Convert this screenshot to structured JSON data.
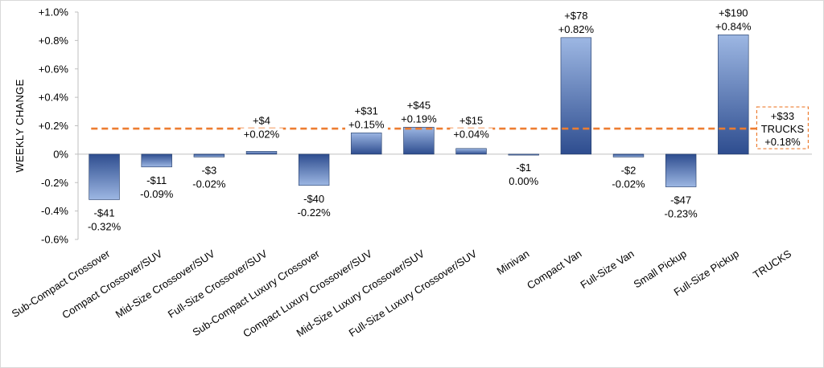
{
  "chart_data": {
    "type": "bar",
    "ylabel": "WEEKLY CHANGE",
    "ylim": [
      -0.6,
      1.0
    ],
    "yticks": [
      "+1.0%",
      "+0.8%",
      "+0.6%",
      "+0.4%",
      "+0.2%",
      "0%",
      "-0.2%",
      "-0.4%",
      "-0.6%"
    ],
    "ytick_values": [
      1.0,
      0.8,
      0.6,
      0.4,
      0.2,
      0.0,
      -0.2,
      -0.4,
      -0.6
    ],
    "categories": [
      "Sub-Compact Crossover",
      "Compact Crossover/SUV",
      "Mid-Size Crossover/SUV",
      "Full-Size Crossover/SUV",
      "Sub-Compact Luxury Crossover",
      "Compact Luxury Crossover/SUV",
      "Mid-Size Luxury Crossover/SUV",
      "Full-Size Luxury Crossover/SUV",
      "Minivan",
      "Compact Van",
      "Full-Size Van",
      "Small Pickup",
      "Full-Size Pickup",
      "TRUCKS"
    ],
    "values": [
      -0.32,
      -0.09,
      -0.02,
      0.02,
      -0.22,
      0.15,
      0.19,
      0.04,
      0.0,
      0.82,
      -0.02,
      -0.23,
      0.84,
      null
    ],
    "dollar_labels": [
      "-$41",
      "-$11",
      "-$3",
      "+$4",
      "-$40",
      "+$31",
      "+$45",
      "+$15",
      "-$1",
      "+$78",
      "-$2",
      "-$47",
      "+$190",
      "+$33"
    ],
    "percent_labels": [
      "-0.32%",
      "-0.09%",
      "-0.02%",
      "+0.02%",
      "-0.22%",
      "+0.15%",
      "+0.19%",
      "+0.04%",
      "0.00%",
      "+0.82%",
      "-0.02%",
      "-0.23%",
      "+0.84%",
      "+0.18%"
    ],
    "average": {
      "value": 0.18,
      "label_name": "TRUCKS",
      "dollar": "+$33",
      "percent": "+0.18%"
    },
    "colors": {
      "bar_dark": "#2e4d8f",
      "bar_light": "#9db7e3",
      "average_line": "#ed7d31",
      "axis": "#bfbfbf"
    },
    "grid": false
  }
}
